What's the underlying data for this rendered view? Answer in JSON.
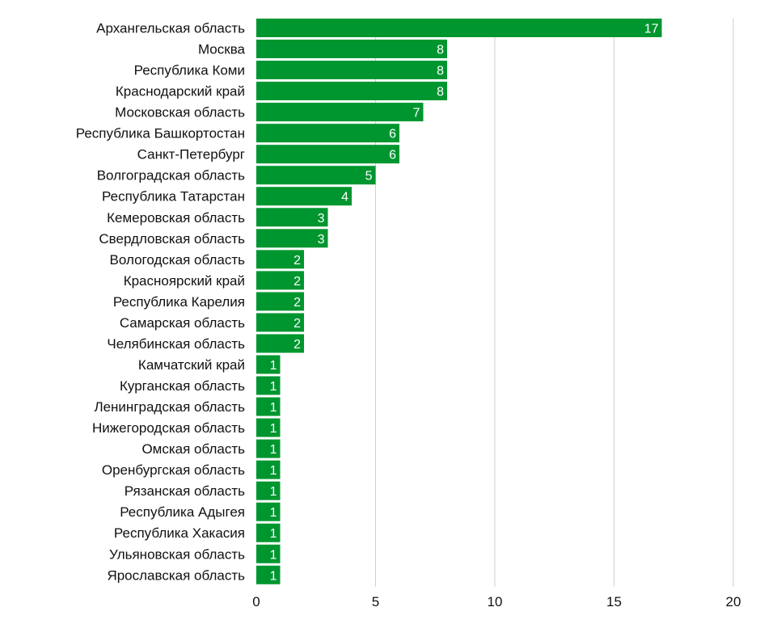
{
  "chart_data": {
    "type": "bar",
    "orientation": "horizontal",
    "categories": [
      "Архангельская область",
      "Москва",
      "Республика Коми",
      "Краснодарский край",
      "Московская область",
      "Республика Башкортостан",
      "Санкт-Петербург",
      "Волгоградская область",
      "Республика Татарстан",
      "Кемеровская область",
      "Свердловская область",
      "Вологодская область",
      "Красноярский край",
      "Республика Карелия",
      "Самарская область",
      "Челябинская область",
      "Камчатский край",
      "Курганская область",
      "Ленинградская область",
      "Нижегородская область",
      "Омская область",
      "Оренбургская область",
      "Рязанская область",
      "Республика Адыгея",
      "Республика Хакасия",
      "Ульяновская область",
      "Ярославская область"
    ],
    "values": [
      17,
      8,
      8,
      8,
      7,
      6,
      6,
      5,
      4,
      3,
      3,
      2,
      2,
      2,
      2,
      2,
      1,
      1,
      1,
      1,
      1,
      1,
      1,
      1,
      1,
      1,
      1
    ],
    "xlim": [
      0,
      20
    ],
    "xticks": [
      "0",
      "5",
      "10",
      "15",
      "20"
    ],
    "grid": true,
    "bar_color": "#00962f",
    "grid_color": "#cfcfcf",
    "data_labels": true
  }
}
